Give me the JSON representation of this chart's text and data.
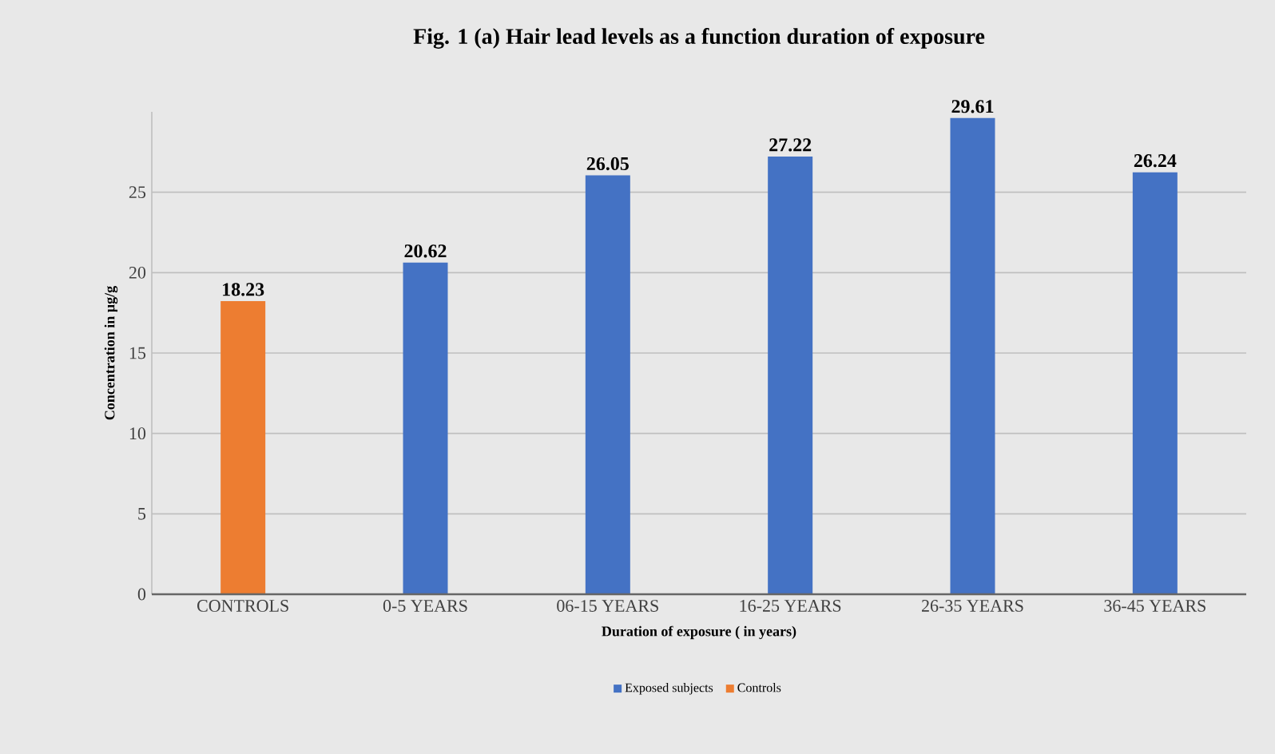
{
  "chart_data": {
    "type": "bar",
    "title": "Fig. 1 (a) Hair lead levels as a function duration of exposure",
    "xlabel": "Duration of exposure ( in years)",
    "ylabel": "Concentration in µg/g",
    "categories": [
      "CONTROLS",
      "0-5 YEARS",
      "06-15 YEARS",
      "16-25 YEARS",
      "26-35 YEARS",
      "36-45 YEARS"
    ],
    "series": [
      {
        "name": "Exposed subjects",
        "color": "#4472c4",
        "values": [
          null,
          20.62,
          26.05,
          27.22,
          29.61,
          26.24
        ]
      },
      {
        "name": "Controls",
        "color": "#ed7d31",
        "values": [
          18.23,
          null,
          null,
          null,
          null,
          null
        ]
      }
    ],
    "ylim": [
      0,
      30
    ],
    "yticks": [
      0,
      5,
      10,
      15,
      20,
      25
    ],
    "grid": "y",
    "legend": "bottom",
    "data_labels": true
  }
}
